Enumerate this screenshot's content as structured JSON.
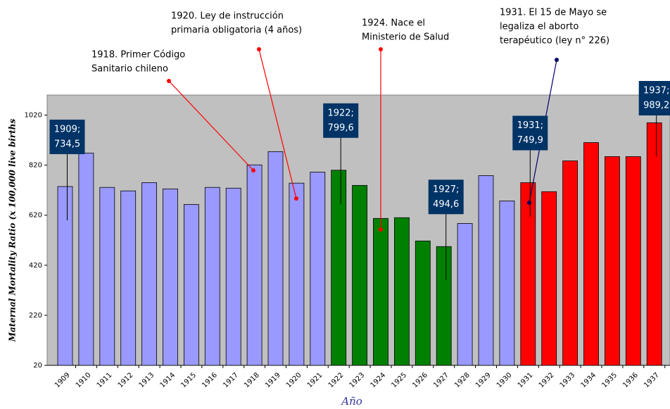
{
  "chart_data": {
    "type": "bar",
    "y_axis_label": "Maternal Mortality Ratio (x 100,000 live births",
    "x_axis_label": "Año",
    "categories": [
      "1909",
      "1910",
      "1911",
      "1912",
      "1913",
      "1914",
      "1915",
      "1916",
      "1917",
      "1918",
      "1919",
      "1920",
      "1921",
      "1922",
      "1923",
      "1924",
      "1925",
      "1926",
      "1927",
      "1928",
      "1929",
      "1930",
      "1931",
      "1932",
      "1933",
      "1934",
      "1935",
      "1936",
      "1937"
    ],
    "values": [
      734.5,
      868,
      731,
      717,
      750,
      725,
      663,
      731,
      728,
      821,
      874,
      748,
      792,
      799.6,
      739,
      607,
      610,
      517,
      494.6,
      587,
      778,
      677,
      749.9,
      714,
      837,
      910,
      854,
      854,
      989.2
    ],
    "value_labels": [
      "734,5",
      null,
      null,
      null,
      null,
      null,
      null,
      null,
      null,
      null,
      null,
      null,
      null,
      "799,6",
      null,
      null,
      null,
      null,
      "494,6",
      null,
      null,
      null,
      "749,9",
      null,
      null,
      null,
      null,
      null,
      "989,2"
    ],
    "colors": [
      "#9999ff",
      "#9999ff",
      "#9999ff",
      "#9999ff",
      "#9999ff",
      "#9999ff",
      "#9999ff",
      "#9999ff",
      "#9999ff",
      "#9999ff",
      "#9999ff",
      "#9999ff",
      "#9999ff",
      "#008000",
      "#008000",
      "#008000",
      "#008000",
      "#008000",
      "#008000",
      "#9999ff",
      "#9999ff",
      "#9999ff",
      "#ff0000",
      "#ff0000",
      "#ff0000",
      "#ff0000",
      "#ff0000",
      "#ff0000",
      "#ff0000"
    ],
    "ylim": [
      20,
      1100
    ],
    "yticks": [
      20,
      220,
      420,
      620,
      820,
      1020
    ],
    "annotations": [
      {
        "lines": [
          "1918. Primer Código",
          "Sanitario chileno"
        ],
        "color": "#ff0000"
      },
      {
        "lines": [
          "1920. Ley de instrucción",
          "primaria obligatoria (4 años)"
        ],
        "color": "#ff0000"
      },
      {
        "lines": [
          "1924. Nace el",
          "Ministerio de Salud"
        ],
        "color": "#ff0000"
      },
      {
        "lines": [
          "1931. El 15 de Mayo se",
          "legaliza el aborto",
          "terapéutico (ley n° 226)"
        ],
        "color": "#000066"
      }
    ]
  }
}
